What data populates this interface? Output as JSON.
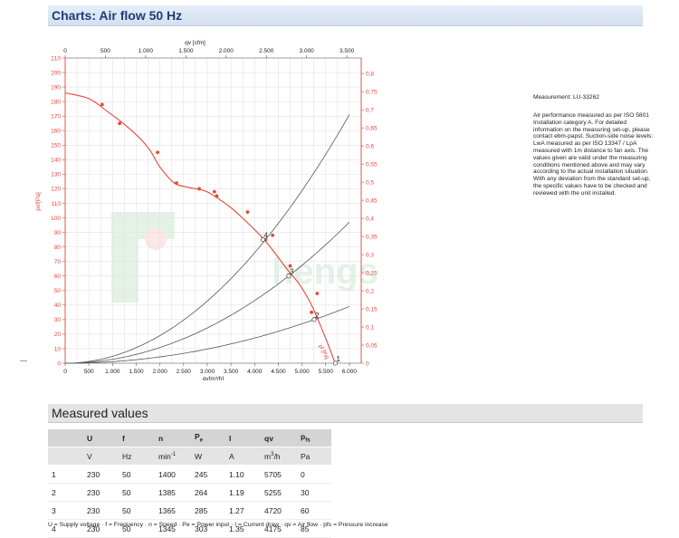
{
  "header": {
    "title": "Charts: Air flow 50 Hz"
  },
  "measurement": {
    "id": "Measurement: LU-33262",
    "description": "Air performance measured as per ISO 5801 Installation category A. For detailed information on the measuring set-up, please contact ebm-papst. Suction-side noise levels: LwA measured as per ISO 13347 / LpA measured with 1m distance to fan axis. The values given are valid under the measuring conditions mentioned above and may vary according to the actual installation situation. With any deviation from the standard set-up, the specific values have to be checked and reviewed with the unit installed."
  },
  "chart_data": {
    "type": "line",
    "title": "",
    "xlabel": "qv[m³/h]",
    "x2label": "qv [cfm]",
    "ylabel": "psf[Pa]",
    "y2label": "psf [in H2O]",
    "xlim": [
      0,
      6250
    ],
    "ylim": [
      0,
      210
    ],
    "xticks": [
      "0",
      "500",
      "1.000",
      "1.500",
      "2.000",
      "2.500",
      "3.000",
      "3.500",
      "4.000",
      "4.500",
      "5.000",
      "5.500",
      "6.000"
    ],
    "x2ticks": [
      "0",
      "500",
      "1.000",
      "1.500",
      "2.000",
      "2.500",
      "3.000",
      "3.500"
    ],
    "yticks": [
      "0",
      "10",
      "20",
      "30",
      "40",
      "50",
      "60",
      "70",
      "80",
      "90",
      "100",
      "110",
      "120",
      "130",
      "140",
      "150",
      "160",
      "170",
      "180",
      "190",
      "200",
      "210"
    ],
    "y2ticks": [
      "0",
      "0,05",
      "0,1",
      "0,15",
      "0,2",
      "0,25",
      "0,3",
      "0,35",
      "0,4",
      "0,45",
      "0,5",
      "0,55",
      "0,6",
      "0,65",
      "0,7",
      "0,75",
      "0,8"
    ],
    "grid": true,
    "fan_curve": {
      "name": "pf [Pa]",
      "color": "#e8463a",
      "x": [
        0,
        500,
        900,
        1300,
        1600,
        1800,
        2000,
        2300,
        2600,
        2900,
        3100,
        3500,
        3900,
        4200,
        4400,
        4700,
        4950,
        5200,
        5500,
        5700
      ],
      "y": [
        186,
        182,
        173,
        163,
        154,
        146,
        135,
        124,
        121,
        119,
        116,
        107,
        95,
        85,
        77,
        64,
        54,
        40,
        17,
        0
      ],
      "markers": {
        "x": [
          780,
          1150,
          1950,
          2350,
          2830,
          3150,
          3200,
          3850,
          4380,
          4230,
          4750,
          5320,
          5200,
          5705
        ],
        "y": [
          178,
          165,
          145,
          124,
          120,
          118,
          115,
          104,
          88,
          85,
          67,
          48,
          35,
          0
        ]
      }
    },
    "system_curves": [
      {
        "label": "1",
        "x": [
          0,
          5705
        ],
        "y": [
          0,
          0
        ]
      },
      {
        "label": "2",
        "x": [
          0,
          1000,
          2000,
          3000,
          4000,
          5255,
          6000
        ],
        "y": [
          0,
          1.1,
          4.3,
          9.8,
          17.4,
          30,
          39
        ]
      },
      {
        "label": "3",
        "x": [
          0,
          1000,
          2000,
          3000,
          4000,
          4720,
          6000
        ],
        "y": [
          0,
          2.7,
          10.8,
          24.2,
          43.1,
          60,
          97
        ]
      },
      {
        "label": "4",
        "x": [
          0,
          1000,
          2000,
          3000,
          4000,
          4175,
          6000
        ],
        "y": [
          0,
          4.9,
          19.5,
          43.9,
          78,
          85,
          171
        ]
      }
    ],
    "operating_points": [
      {
        "label": "1",
        "x": 5705,
        "y": 0
      },
      {
        "label": "2",
        "x": 5255,
        "y": 30
      },
      {
        "label": "3",
        "x": 4720,
        "y": 60
      },
      {
        "label": "4",
        "x": 4175,
        "y": 85
      }
    ],
    "watermark": "hengsheng"
  },
  "measured": {
    "title": "Measured values",
    "headers": [
      "",
      "U",
      "f",
      "n",
      "Pe",
      "I",
      "qv",
      "pfs"
    ],
    "units": [
      "",
      "V",
      "Hz",
      "min-1",
      "W",
      "A",
      "m3/h",
      "Pa"
    ],
    "rows": [
      [
        "1",
        "230",
        "50",
        "1400",
        "245",
        "1.10",
        "5705",
        "0"
      ],
      [
        "2",
        "230",
        "50",
        "1385",
        "264",
        "1.19",
        "5255",
        "30"
      ],
      [
        "3",
        "230",
        "50",
        "1365",
        "285",
        "1.27",
        "4720",
        "60"
      ],
      [
        "4",
        "230",
        "50",
        "1345",
        "303",
        "1.35",
        "4175",
        "85"
      ]
    ],
    "legend": "U = Supply voltage · f = Frequency · n = Speed · Pe = Power input · I = Current draw · qv = Air flow · pfs = Pressure increase"
  }
}
